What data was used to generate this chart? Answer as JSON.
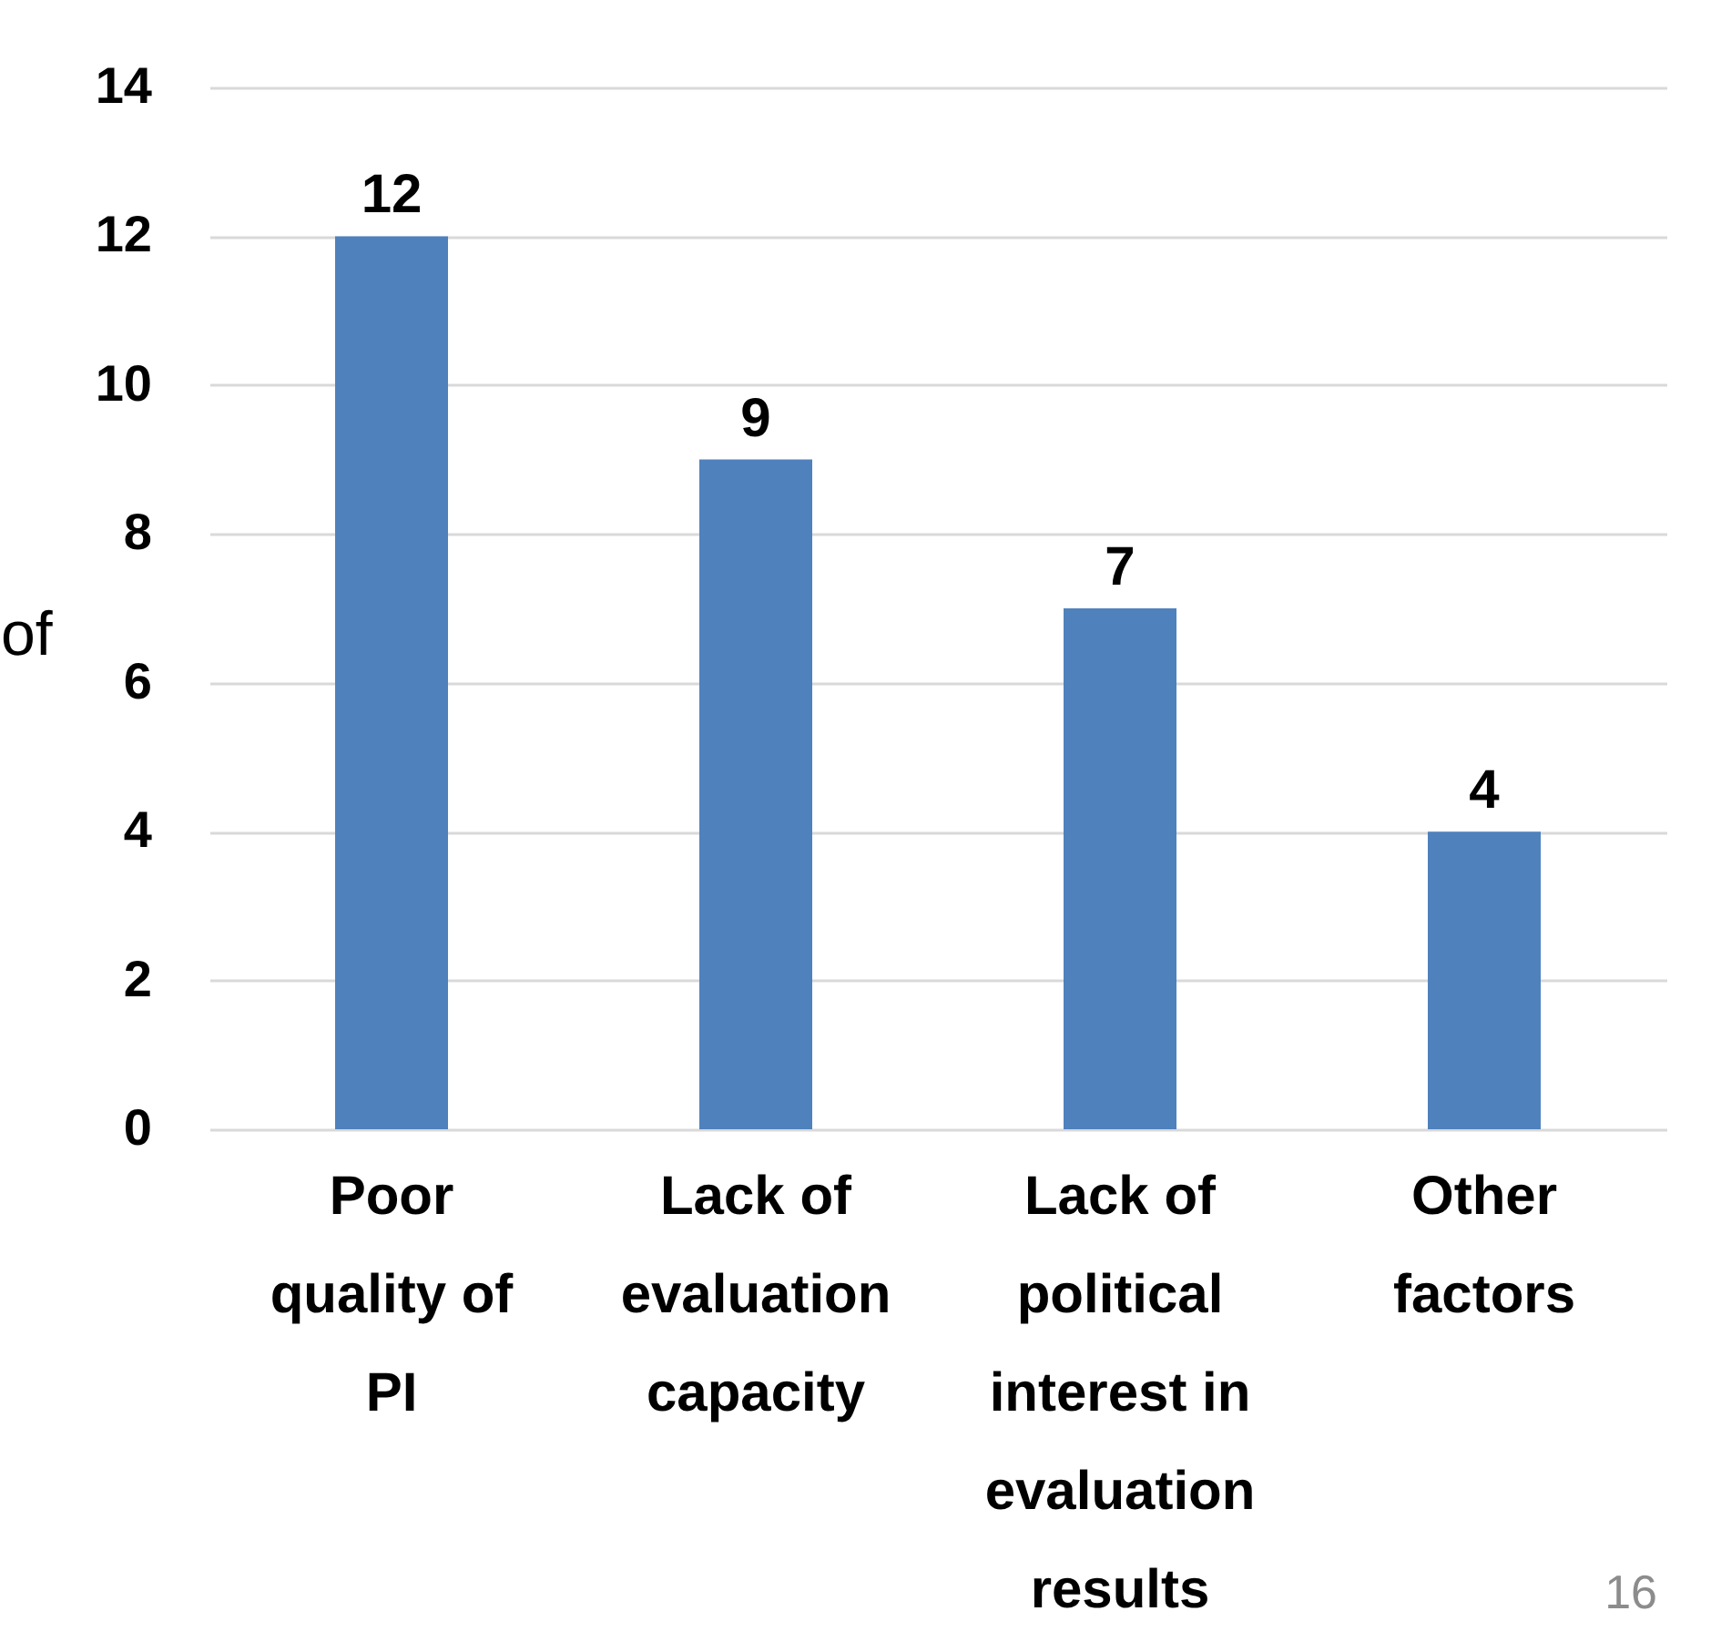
{
  "chart_data": {
    "type": "bar",
    "categories": [
      "Poor quality of PI",
      "Lack of evaluation capacity",
      "Lack of political interest in evaluation results",
      "Other factors"
    ],
    "values": [
      12,
      9,
      7,
      4
    ],
    "color": "#4f81bd",
    "ylabel": "of",
    "ylim": [
      0,
      14
    ],
    "yticks": [
      0,
      2,
      4,
      6,
      8,
      10,
      12,
      14
    ],
    "grid": "y",
    "data_labels": true,
    "annotations": [
      "16"
    ]
  }
}
